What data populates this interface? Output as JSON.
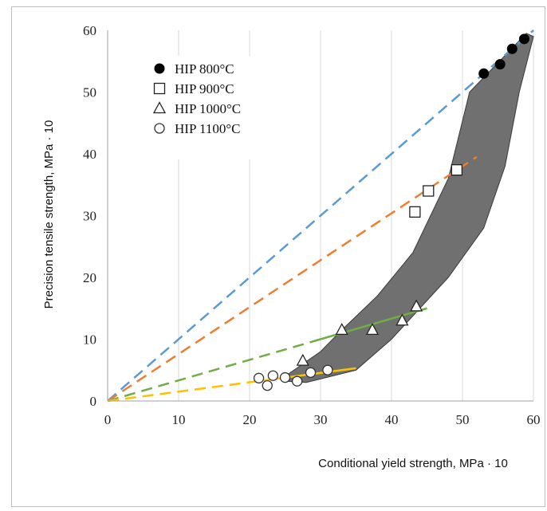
{
  "chart_data": {
    "type": "scatter",
    "title": "",
    "xlabel": "Conditional yield strength, MPa · 10",
    "ylabel": "Precision tensile strength, MPa · 10",
    "xlim": [
      0,
      60
    ],
    "ylim": [
      0,
      60
    ],
    "x_ticks": [
      "0",
      "10",
      "20",
      "30",
      "40",
      "50",
      "60"
    ],
    "y_ticks": [
      "0",
      "10",
      "20",
      "30",
      "40",
      "50",
      "60"
    ],
    "grid": "vertical",
    "legend_position": "top-left",
    "series": [
      {
        "name": "HIP 800°C",
        "marker": "filled-circle",
        "color": "#000000",
        "points": [
          [
            53,
            53
          ],
          [
            55.3,
            54.5
          ],
          [
            57,
            57
          ],
          [
            58.7,
            58.6
          ]
        ]
      },
      {
        "name": "HIP 900°C",
        "marker": "open-square",
        "color": "#000000",
        "points": [
          [
            43.3,
            30.6
          ],
          [
            45.2,
            34
          ],
          [
            49.2,
            37.4
          ]
        ]
      },
      {
        "name": "HIP 1000°C",
        "marker": "open-triangle",
        "color": "#000000",
        "points": [
          [
            27.5,
            6.5
          ],
          [
            33,
            11.5
          ],
          [
            37.3,
            11.5
          ],
          [
            41.5,
            13
          ],
          [
            43.5,
            15.3
          ]
        ]
      },
      {
        "name": "HIP 1100°C",
        "marker": "open-circle",
        "color": "#000000",
        "points": [
          [
            21.3,
            3.7
          ],
          [
            22.5,
            2.5
          ],
          [
            23.3,
            4.1
          ],
          [
            25,
            3.8
          ],
          [
            26.7,
            3.2
          ],
          [
            28.6,
            4.6
          ],
          [
            31,
            5
          ]
        ]
      }
    ],
    "trend_lines": [
      {
        "color": "#5b9bd5",
        "from": [
          0,
          0
        ],
        "to": [
          60,
          60
        ],
        "dash_from_x": 0,
        "dash_to_x": 60
      },
      {
        "color": "#ed7d31",
        "from": [
          0,
          0
        ],
        "to": [
          52,
          39.5
        ],
        "dash_from_x": 0,
        "dash_to_x": 52
      },
      {
        "color": "#70ad47",
        "from": [
          0,
          0
        ],
        "to": [
          45,
          15
        ],
        "dash_from_x": 0,
        "dash_to_x": 30
      },
      {
        "color": "#ffc000",
        "from": [
          0,
          0
        ],
        "to": [
          35,
          5.3
        ],
        "dash_from_x": 0,
        "dash_to_x": 22
      }
    ],
    "band": {
      "color": "#707070",
      "upper": [
        [
          25,
          4
        ],
        [
          30,
          8
        ],
        [
          33,
          11.5
        ],
        [
          38,
          17
        ],
        [
          43,
          24
        ],
        [
          48,
          36
        ],
        [
          51,
          50
        ],
        [
          59,
          59.5
        ]
      ],
      "lower": [
        [
          60,
          59
        ],
        [
          58,
          50
        ],
        [
          56,
          38
        ],
        [
          53,
          28
        ],
        [
          48,
          20
        ],
        [
          44,
          15
        ],
        [
          40,
          10
        ],
        [
          35,
          5
        ],
        [
          28,
          3
        ],
        [
          25,
          3.2
        ]
      ]
    }
  }
}
